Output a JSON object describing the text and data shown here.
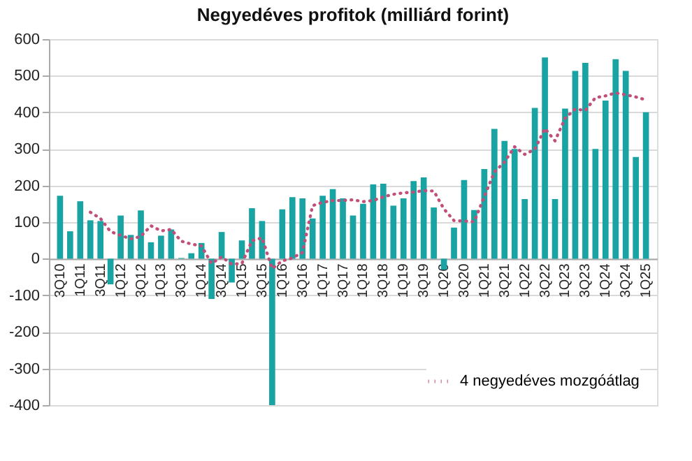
{
  "chart_data": {
    "type": "bar",
    "title": "Negyedéves profitok (milliárd  forint)",
    "categories": [
      "3Q10",
      null,
      "1Q11",
      null,
      "3Q11",
      null,
      "1Q12",
      null,
      "3Q12",
      null,
      "1Q13",
      null,
      "3Q13",
      null,
      "1Q14",
      null,
      "3Q14",
      null,
      "1Q15",
      null,
      "3Q15",
      null,
      "1Q16",
      null,
      "3Q16",
      null,
      "1Q17",
      null,
      "3Q17",
      null,
      "1Q18",
      null,
      "3Q18",
      null,
      "1Q19",
      null,
      "3Q19",
      null,
      "1Q20",
      null,
      "3Q20",
      null,
      "1Q21",
      null,
      "3Q21",
      null,
      "1Q22",
      null,
      "3Q22",
      null,
      "1Q23",
      null,
      "3Q23",
      null,
      "1Q24",
      null,
      "3Q24",
      null,
      "1Q25"
    ],
    "series": [
      {
        "color": "#1aa3a3",
        "values": [
          172,
          75,
          157,
          105,
          103,
          -70,
          118,
          65,
          132,
          45,
          63,
          80,
          2,
          15,
          43,
          -110,
          73,
          -65,
          50,
          138,
          103,
          -400,
          135,
          168,
          165,
          110,
          172,
          190,
          165,
          118,
          150,
          203,
          205,
          145,
          165,
          212,
          222,
          140,
          -30,
          85,
          215,
          133,
          245,
          355,
          322,
          300,
          163,
          412,
          550,
          163,
          410,
          513,
          535,
          300,
          432,
          545,
          513,
          278,
          400
        ]
      },
      {
        "type": "line",
        "name": "4 negyedéves mozgóátlag",
        "color": "#c0507a",
        "line_style": "dotted",
        "values": [
          null,
          null,
          null,
          127,
          110,
          74,
          64,
          54,
          61,
          90,
          76,
          80,
          48,
          40,
          35,
          -13,
          5,
          -15,
          -13,
          49,
          57,
          -27,
          -6,
          2,
          17,
          145,
          154,
          159,
          159,
          161,
          156,
          159,
          169,
          176,
          180,
          182,
          186,
          185,
          136,
          104,
          103,
          101,
          170,
          237,
          264,
          306,
          285,
          299,
          356,
          322,
          384,
          409,
          405,
          440,
          445,
          453,
          448,
          442,
          434
        ]
      }
    ],
    "ylim": [
      -400,
      600
    ],
    "yticks": [
      -400,
      -300,
      -200,
      -100,
      0,
      100,
      200,
      300,
      400,
      500,
      600
    ],
    "grid": "y",
    "legend": "bottom right",
    "marker": "none"
  }
}
